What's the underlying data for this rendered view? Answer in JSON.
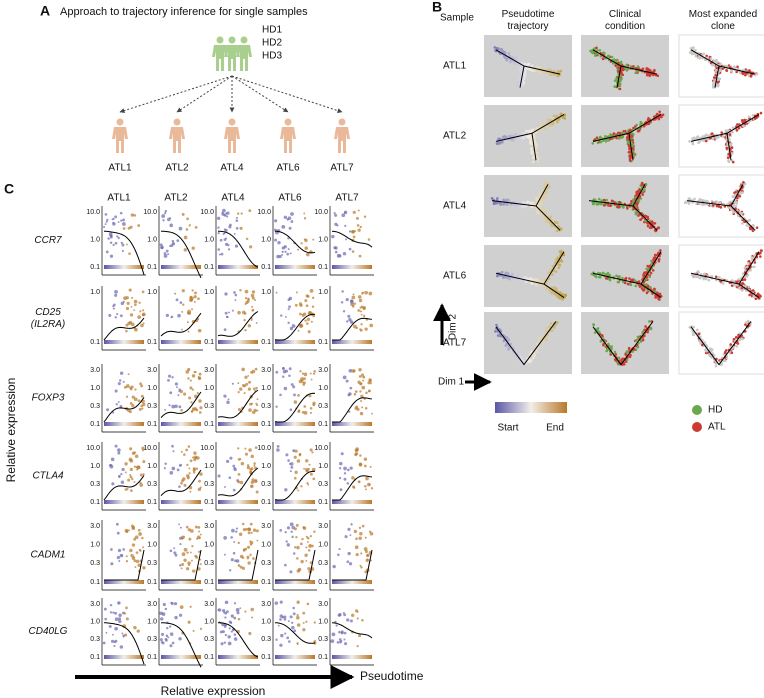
{
  "panel_a": {
    "letter": "A",
    "title": "Approach to trajectory inference for single samples",
    "donors": [
      "HD1",
      "HD2",
      "HD3"
    ],
    "samples": [
      "ATL1",
      "ATL2",
      "ATL4",
      "ATL6",
      "ATL7"
    ]
  },
  "panel_b": {
    "letter": "B",
    "sample_header": "Sample",
    "columns": [
      "Pseudotime trajectory",
      "Clinical condition",
      "Most expanded clone"
    ],
    "rows": [
      "ATL1",
      "ATL2",
      "ATL4",
      "ATL6",
      "ATL7"
    ],
    "y_axis": "Dim 2",
    "x_axis": "Dim 1",
    "gradient_start": "Start",
    "gradient_end": "End",
    "legend": [
      {
        "name": "HD",
        "color": "#6aa84f"
      },
      {
        "name": "ATL",
        "color": "#cc3b33"
      }
    ]
  },
  "panel_c": {
    "letter": "C",
    "columns": [
      "ATL1",
      "ATL2",
      "ATL4",
      "ATL6",
      "ATL7"
    ],
    "genes": [
      {
        "name": "CCR7",
        "ticks": [
          "10.0",
          "1.0",
          "0.1"
        ]
      },
      {
        "name": "CD25\n(IL2RA)",
        "ticks": [
          "1.0",
          "0.1"
        ]
      },
      {
        "name": "FOXP3",
        "ticks": [
          "3.0",
          "1.0",
          "0.3",
          "0.1"
        ]
      },
      {
        "name": "CTLA4",
        "ticks": [
          "10.0",
          "1.0",
          "0.3",
          "0.1"
        ]
      },
      {
        "name": "CADM1",
        "ticks": [
          "3.0",
          "1.0",
          "0.3",
          "0.1"
        ]
      },
      {
        "name": "CD40LG",
        "ticks": [
          "3.0",
          "1.0",
          "0.3",
          "0.1"
        ]
      }
    ],
    "y_axis": "Relative expression",
    "x_axis": "Relative expression",
    "x_arrow": "Pseudotime"
  }
}
